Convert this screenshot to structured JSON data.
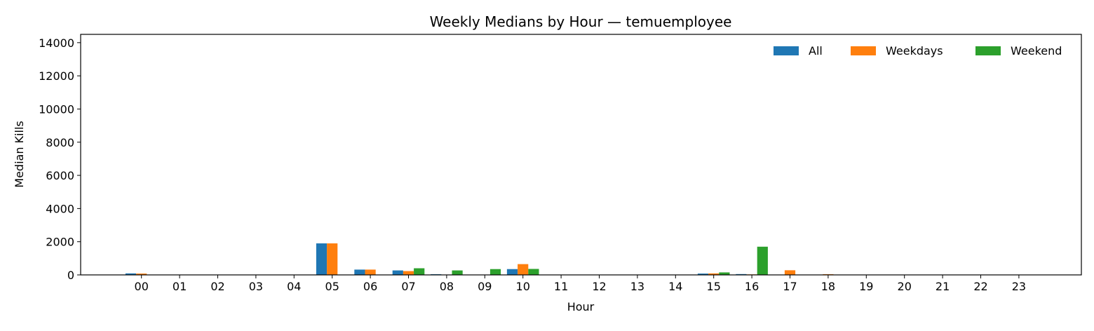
{
  "chart_data": {
    "type": "bar",
    "title": "Weekly Medians by Hour — temuemployee",
    "xlabel": "Hour",
    "ylabel": "Median Kills",
    "ylim": [
      0,
      14500
    ],
    "yticks": [
      0,
      2000,
      4000,
      6000,
      8000,
      10000,
      12000,
      14000
    ],
    "categories": [
      "00",
      "01",
      "02",
      "03",
      "04",
      "05",
      "06",
      "07",
      "08",
      "09",
      "10",
      "11",
      "12",
      "13",
      "14",
      "15",
      "16",
      "17",
      "18",
      "19",
      "20",
      "21",
      "22",
      "23"
    ],
    "series": [
      {
        "name": "All",
        "color": "#1f77b4",
        "values": [
          90,
          0,
          0,
          0,
          0,
          1900,
          320,
          270,
          40,
          0,
          350,
          0,
          0,
          0,
          0,
          80,
          50,
          0,
          0,
          0,
          0,
          0,
          0,
          0
        ]
      },
      {
        "name": "Weekdays",
        "color": "#ff7f0e",
        "values": [
          80,
          0,
          0,
          0,
          0,
          1900,
          320,
          230,
          0,
          0,
          650,
          0,
          0,
          0,
          0,
          90,
          30,
          280,
          40,
          0,
          0,
          0,
          0,
          0
        ]
      },
      {
        "name": "Weekend",
        "color": "#2ca02c",
        "values": [
          0,
          0,
          0,
          0,
          0,
          0,
          0,
          400,
          270,
          350,
          360,
          0,
          0,
          0,
          0,
          150,
          1700,
          0,
          0,
          0,
          0,
          0,
          0,
          0
        ]
      }
    ],
    "legend_position": "top-right",
    "grid": false
  }
}
